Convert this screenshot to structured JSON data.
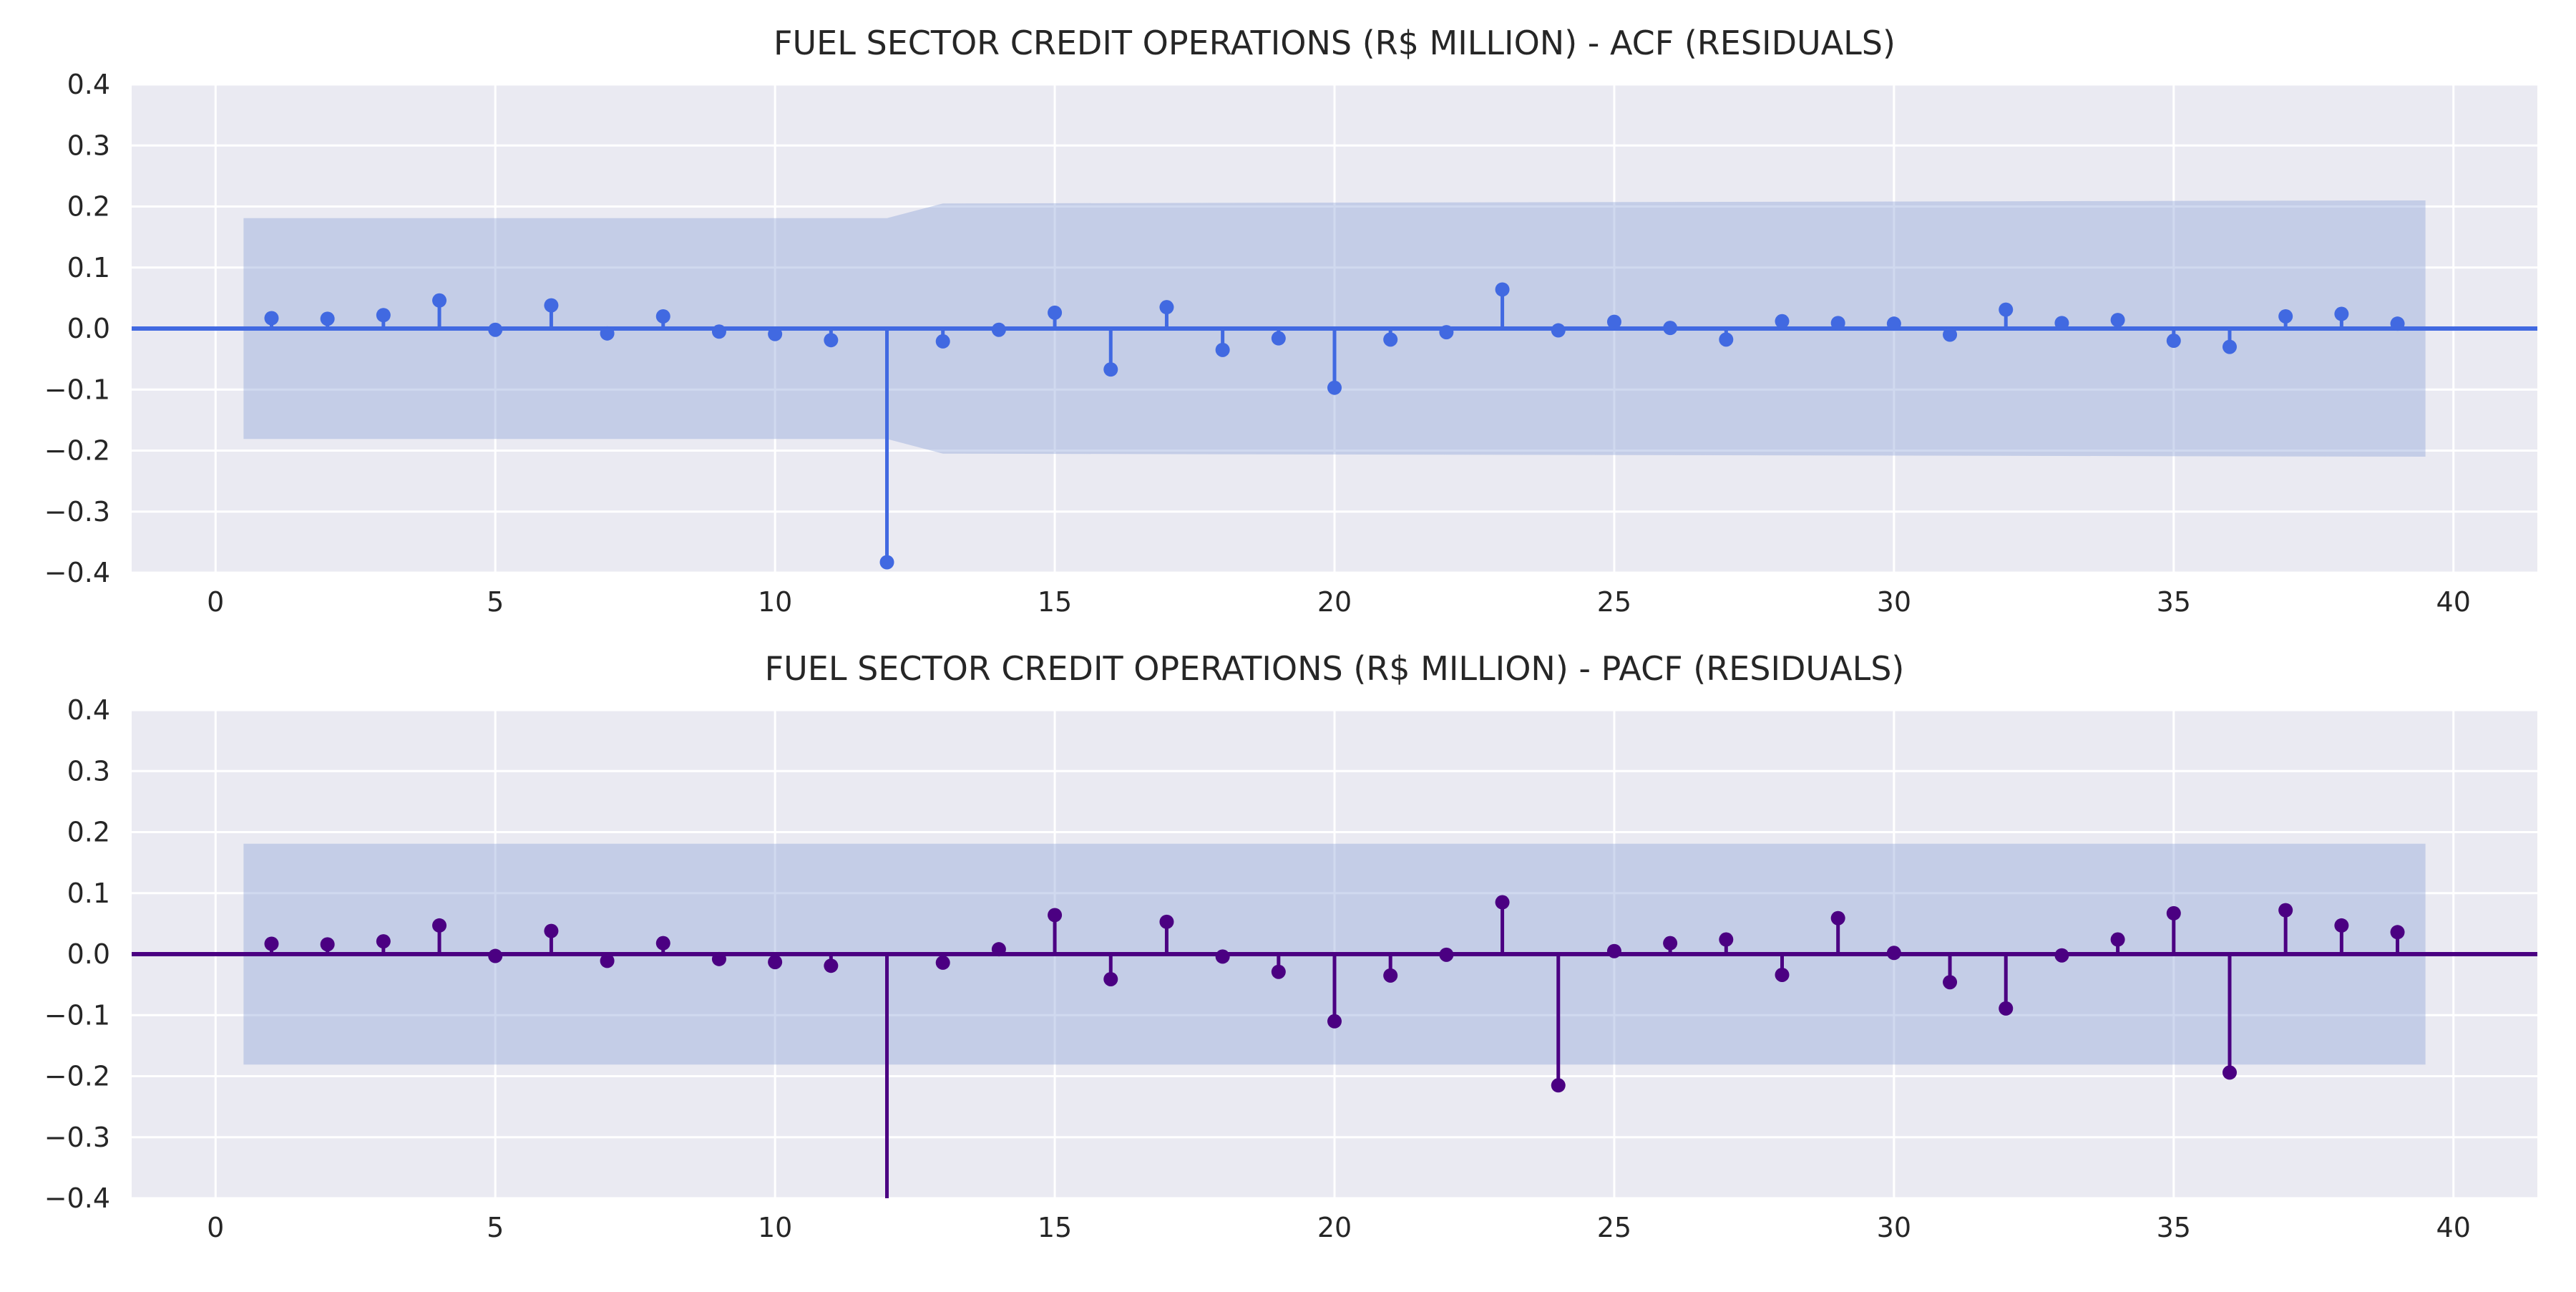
{
  "chart_data": [
    {
      "type": "stem",
      "title": "FUEL SECTOR CREDIT OPERATIONS (R$ MILLION) - ACF (RESIDUALS)",
      "xlabel": "",
      "ylabel": "",
      "xlim": [
        -1.5,
        41.5
      ],
      "ylim": [
        -0.4,
        0.4
      ],
      "xticks": [
        "0",
        "5",
        "10",
        "15",
        "20",
        "25",
        "30",
        "35",
        "40"
      ],
      "yticks": [
        "0.4",
        "0.3",
        "0.2",
        "0.1",
        "0.0",
        "−0.1",
        "−0.2",
        "−0.3",
        "−0.4"
      ],
      "grid": true,
      "color": "#4169e1",
      "band_color": "#8fa4d8",
      "lags": [
        1,
        2,
        3,
        4,
        5,
        6,
        7,
        8,
        9,
        10,
        11,
        12,
        13,
        14,
        15,
        16,
        17,
        18,
        19,
        20,
        21,
        22,
        23,
        24,
        25,
        26,
        27,
        28,
        29,
        30,
        31,
        32,
        33,
        34,
        35,
        36,
        37,
        38,
        39
      ],
      "values": [
        0.017,
        0.016,
        0.022,
        0.046,
        -0.002,
        0.038,
        -0.008,
        0.02,
        -0.005,
        -0.009,
        -0.019,
        -0.383,
        -0.021,
        -0.002,
        0.026,
        -0.067,
        0.035,
        -0.035,
        -0.016,
        -0.097,
        -0.018,
        -0.006,
        0.064,
        -0.003,
        0.011,
        0.001,
        -0.018,
        0.012,
        0.009,
        0.008,
        -0.01,
        0.031,
        0.009,
        0.014,
        -0.02,
        -0.03,
        0.02,
        0.024,
        0.008
      ],
      "confidence_band": {
        "lags": [
          0.5,
          12.0,
          13.0,
          39.5
        ],
        "upper": [
          0.181,
          0.181,
          0.205,
          0.21
        ],
        "lower": [
          -0.181,
          -0.181,
          -0.205,
          -0.21
        ]
      }
    },
    {
      "type": "stem",
      "title": "FUEL SECTOR CREDIT OPERATIONS (R$ MILLION) - PACF (RESIDUALS)",
      "xlabel": "",
      "ylabel": "",
      "xlim": [
        -1.5,
        41.5
      ],
      "ylim": [
        -0.4,
        0.4
      ],
      "xticks": [
        "0",
        "5",
        "10",
        "15",
        "20",
        "25",
        "30",
        "35",
        "40"
      ],
      "yticks": [
        "0.4",
        "0.3",
        "0.2",
        "0.1",
        "0.0",
        "−0.1",
        "−0.2",
        "−0.3",
        "−0.4"
      ],
      "grid": true,
      "color": "#4b0082",
      "band_color": "#8fa4d8",
      "lags": [
        1,
        2,
        3,
        4,
        5,
        6,
        7,
        8,
        9,
        10,
        11,
        12,
        13,
        14,
        15,
        16,
        17,
        18,
        19,
        20,
        21,
        22,
        23,
        24,
        25,
        26,
        27,
        28,
        29,
        30,
        31,
        32,
        33,
        34,
        35,
        36,
        37,
        38,
        39
      ],
      "values": [
        0.017,
        0.016,
        0.021,
        0.047,
        -0.003,
        0.038,
        -0.011,
        0.018,
        -0.008,
        -0.013,
        -0.019,
        -0.44,
        -0.014,
        0.008,
        0.064,
        -0.041,
        0.053,
        -0.004,
        -0.029,
        -0.11,
        -0.035,
        -0.001,
        0.085,
        -0.215,
        0.005,
        0.018,
        0.024,
        -0.034,
        0.059,
        0.002,
        -0.046,
        -0.089,
        -0.002,
        0.024,
        0.067,
        -0.194,
        0.072,
        0.047,
        0.036
      ],
      "confidence_band": {
        "lags": [
          0.5,
          39.5
        ],
        "upper": [
          0.181,
          0.181
        ],
        "lower": [
          -0.181,
          -0.181
        ]
      }
    }
  ]
}
